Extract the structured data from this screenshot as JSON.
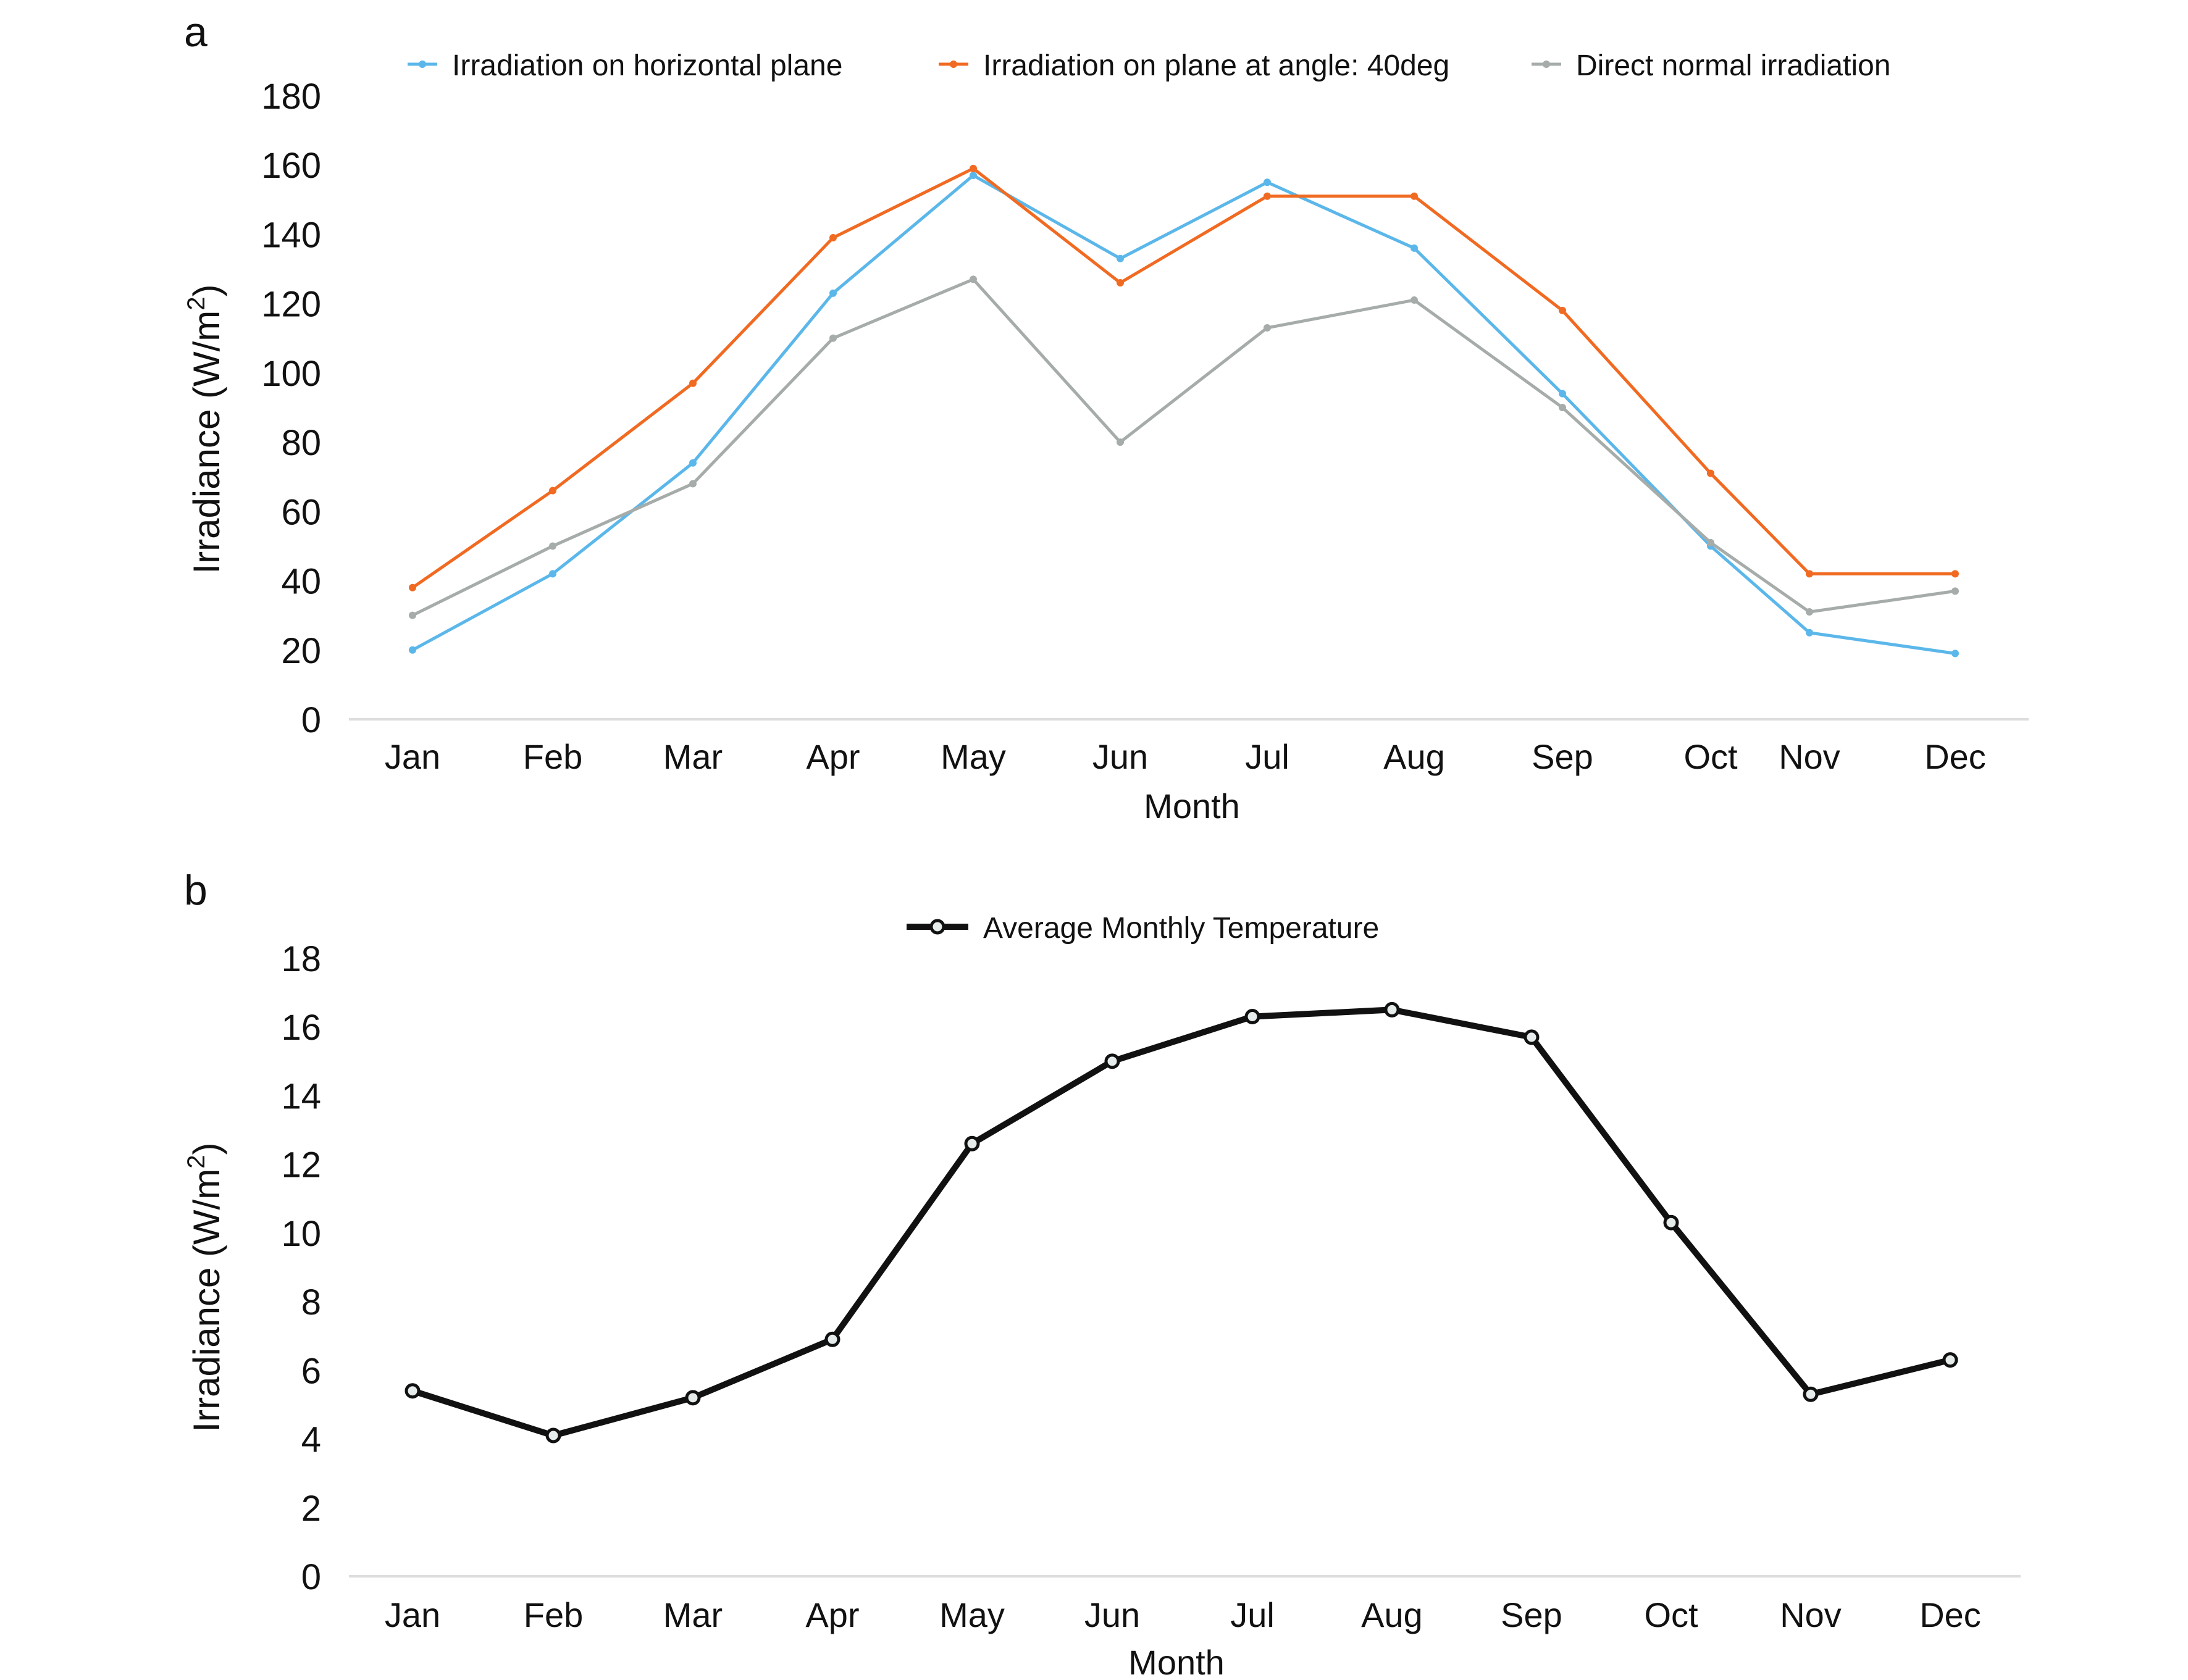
{
  "chart_data": [
    {
      "panel_label": "a",
      "type": "line",
      "title": "",
      "xlabel": "Month",
      "ylabel": "Irradiance (W/m",
      "ylabel_sup": "2",
      "ylabel_close": ")",
      "ylim": [
        0,
        180
      ],
      "yticks": [
        0,
        20,
        40,
        60,
        80,
        100,
        120,
        140,
        160,
        180
      ],
      "grid": false,
      "legend_position": "top",
      "categories": [
        "Jan",
        "Feb",
        "Mar",
        "Apr",
        "May",
        "Jun",
        "Jul",
        "Aug",
        "Sep",
        "Oct",
        "Nov",
        "Dec"
      ],
      "series": [
        {
          "name": "Irradiation on horizontal plane",
          "color": "#5bb7ea",
          "values": [
            20,
            42,
            74,
            123,
            157,
            133,
            155,
            136,
            94,
            50,
            25,
            19
          ]
        },
        {
          "name": "Irradiation on plane at angle: 40deg",
          "color": "#f16a22",
          "values": [
            38,
            66,
            97,
            139,
            159,
            126,
            151,
            151,
            118,
            71,
            42,
            42
          ]
        },
        {
          "name": "Direct normal irradiation",
          "color": "#a6aca9",
          "values": [
            30,
            50,
            68,
            110,
            127,
            80,
            113,
            121,
            90,
            51,
            31,
            37
          ]
        }
      ]
    },
    {
      "panel_label": "b",
      "type": "line",
      "title": "",
      "xlabel": "Month",
      "ylabel": "Irradiance (W/m",
      "ylabel_sup": "2",
      "ylabel_close": ")",
      "ylim": [
        0,
        18
      ],
      "yticks": [
        0,
        2,
        4,
        6,
        8,
        10,
        12,
        14,
        16,
        18
      ],
      "grid": false,
      "legend_position": "top",
      "categories": [
        "Jan",
        "Feb",
        "Mar",
        "Apr",
        "May",
        "Jun",
        "Jul",
        "Aug",
        "Sep",
        "Oct",
        "Nov",
        "Dec"
      ],
      "series": [
        {
          "name": "Average Monthly Temperature",
          "color": "#111111",
          "values": [
            5.4,
            4.1,
            5.2,
            6.9,
            12.6,
            15.0,
            16.3,
            16.5,
            15.7,
            10.3,
            5.3,
            6.3
          ]
        }
      ]
    }
  ]
}
